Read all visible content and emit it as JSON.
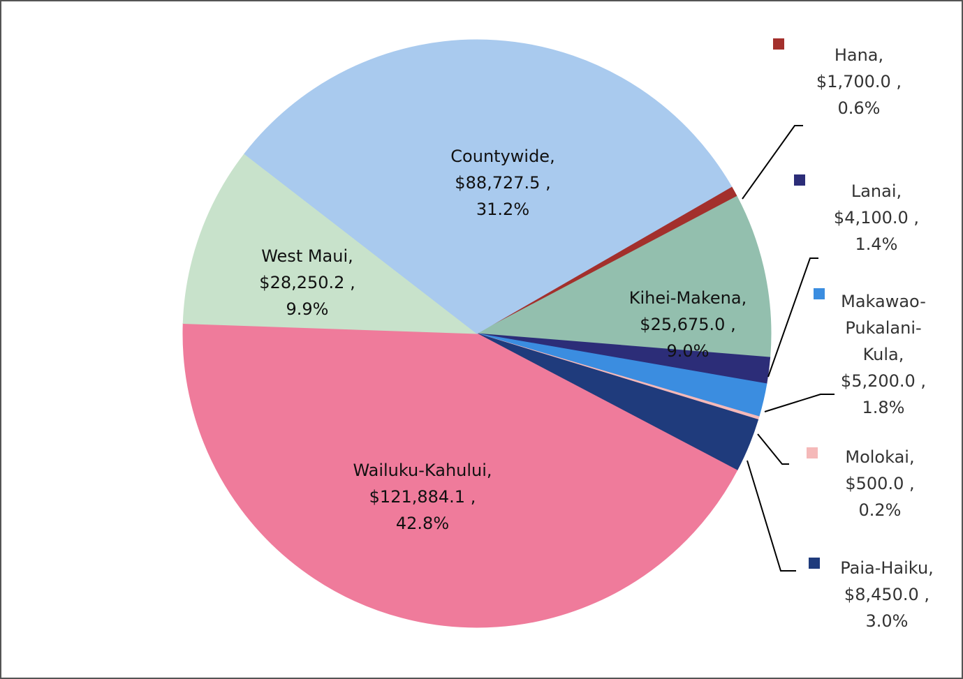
{
  "chart_data": {
    "type": "pie",
    "categories": [
      "Hana,",
      "Kihei-Makena,",
      "Lanai,",
      "Makawao-Pukalani-Kula,",
      "Molokai,",
      "Paia-Haiku,",
      "Wailuku-Kahului,",
      "West Maui,",
      "Countywide,"
    ],
    "values": [
      1700.0,
      25675.0,
      4100.0,
      5200.0,
      500.0,
      8450.0,
      121884.1,
      28250.2,
      88727.5
    ],
    "value_labels": [
      "$1,700.0 ,",
      "$25,675.0 ,",
      "$4,100.0 ,",
      "$5,200.0 ,",
      "$500.0 ,",
      "$8,450.0 ,",
      "$121,884.1 ,",
      "$28,250.2 ,",
      "$88,727.5 ,"
    ],
    "percents": [
      0.6,
      9.0,
      1.4,
      1.8,
      0.2,
      3.0,
      42.8,
      9.9,
      31.2
    ],
    "percent_labels": [
      "0.6%",
      "9.0%",
      "1.4%",
      "1.8%",
      "0.2%",
      "3.0%",
      "42.8%",
      "9.9%",
      "31.2%"
    ],
    "colors": [
      "#a3302c",
      "#93bfae",
      "#2c2d78",
      "#3b8de0",
      "#f5b9b9",
      "#1f3b7c",
      "#ef7b9b",
      "#c8e2cb",
      "#a9caee"
    ]
  }
}
